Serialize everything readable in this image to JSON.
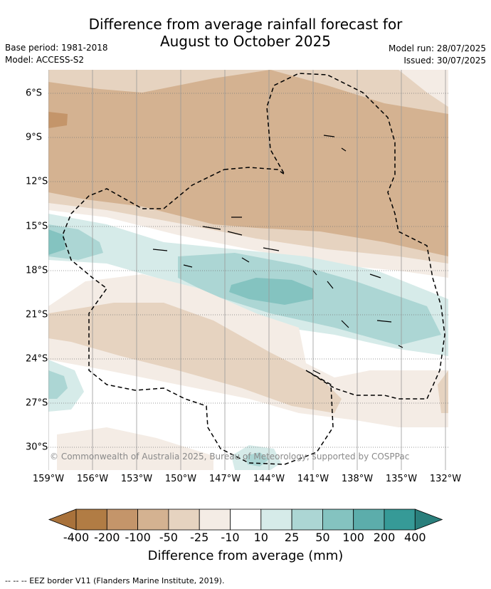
{
  "title_line1": "Difference from average rainfall forecast for",
  "title_line2": "August to October 2025",
  "base_period": "Base period: 1981-2018",
  "model": "Model: ACCESS-S2",
  "model_run": "Model run: 28/07/2025",
  "issued": "Issued: 30/07/2025",
  "lon_labels": [
    "159°W",
    "156°W",
    "153°W",
    "150°W",
    "147°W",
    "144°W",
    "141°W",
    "138°W",
    "135°W",
    "132°W"
  ],
  "lat_labels": [
    "6°S",
    "9°S",
    "12°S",
    "15°S",
    "18°S",
    "21°S",
    "24°S",
    "27°S",
    "30°S"
  ],
  "copyright": "© Commonwealth of Australia 2025, Bureau of Meteorology, supported by COSPPac",
  "legend": {
    "tick_labels": [
      "-400",
      "-200",
      "-100",
      "-50",
      "-25",
      "-10",
      "10",
      "25",
      "50",
      "100",
      "200",
      "400"
    ],
    "title": "Difference from average (mm)",
    "colors": [
      "#a9723b",
      "#b17c44",
      "#c4956a",
      "#d4b291",
      "#e6d3c0",
      "#f4ece5",
      "#ffffff",
      "#d6ebe9",
      "#acd6d4",
      "#84c3c0",
      "#5cadab",
      "#369a97",
      "#2a7f7c"
    ]
  },
  "footnote": "-- -- -- EEZ border V11 (Flanders Marine Institute, 2019)."
}
